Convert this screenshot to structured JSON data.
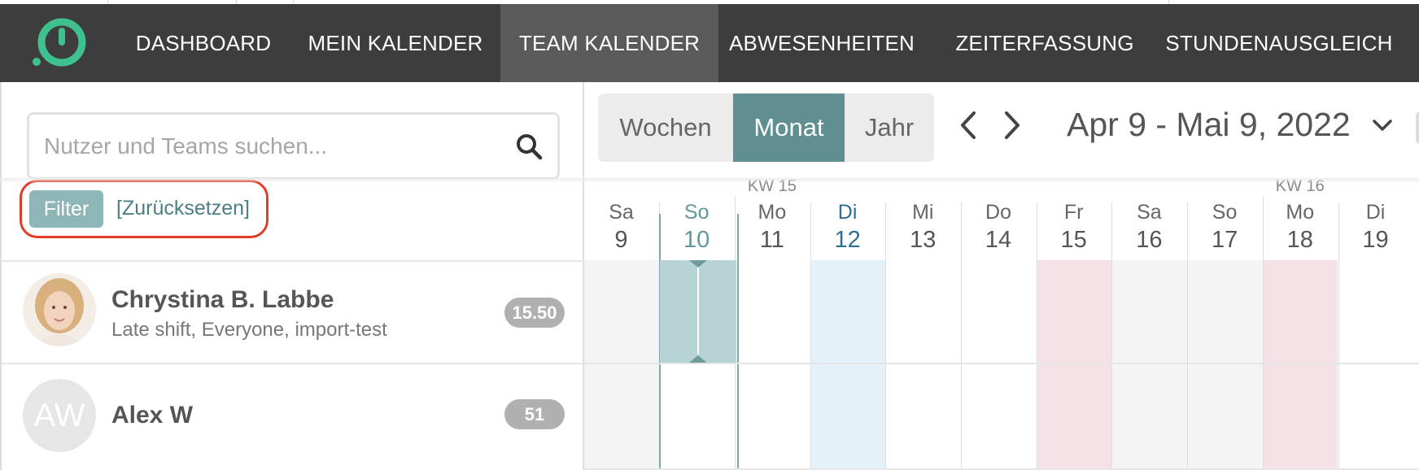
{
  "nav": {
    "logo_icon": "app-logo-icon",
    "items": [
      {
        "label": "DASHBOARD",
        "active": false
      },
      {
        "label": "MEIN KALENDER",
        "active": false
      },
      {
        "label": "TEAM KALENDER",
        "active": true
      },
      {
        "label": "ABWESENHEITEN",
        "active": false
      },
      {
        "label": "ZEITERFASSUNG",
        "active": false
      },
      {
        "label": "STUNDENAUSGLEICH",
        "active": false
      }
    ]
  },
  "search": {
    "placeholder": "Nutzer und Teams suchen...",
    "value": "",
    "icon": "search-icon"
  },
  "filter": {
    "filter_label": "Filter",
    "reset_label": "[Zurücksetzen]"
  },
  "users": [
    {
      "name": "Chrystina B. Labbe",
      "teams": "Late shift, Everyone, import-test",
      "hours": "15.50",
      "avatar": "photo"
    },
    {
      "name": "Alex W",
      "teams": "",
      "hours": "51",
      "avatar_initials": "AW"
    }
  ],
  "calendar": {
    "views": [
      {
        "label": "Wochen",
        "active": false
      },
      {
        "label": "Monat",
        "active": true
      },
      {
        "label": "Jahr",
        "active": false
      }
    ],
    "prev_icon": "chevron-left-icon",
    "next_icon": "chevron-right-icon",
    "date_range": "Apr 9 - Mai 9, 2022",
    "date_range_icon": "chevron-down-icon",
    "week_labels": [
      "KW 15",
      "KW 16"
    ],
    "days": [
      {
        "abbr": "Sa",
        "num": "9",
        "kind": "weekend"
      },
      {
        "abbr": "So",
        "num": "10",
        "kind": "today"
      },
      {
        "abbr": "Mo",
        "num": "11",
        "kind": "normal",
        "week": "KW 15"
      },
      {
        "abbr": "Di",
        "num": "12",
        "kind": "selected"
      },
      {
        "abbr": "Mi",
        "num": "13",
        "kind": "normal"
      },
      {
        "abbr": "Do",
        "num": "14",
        "kind": "normal"
      },
      {
        "abbr": "Fr",
        "num": "15",
        "kind": "holiday"
      },
      {
        "abbr": "Sa",
        "num": "16",
        "kind": "weekend"
      },
      {
        "abbr": "So",
        "num": "17",
        "kind": "weekend"
      },
      {
        "abbr": "Mo",
        "num": "18",
        "kind": "holiday",
        "week": "KW 16"
      },
      {
        "abbr": "Di",
        "num": "19",
        "kind": "normal"
      }
    ]
  },
  "colors": {
    "nav_bg": "#3d3d3d",
    "accent_teal": "#5f8f90",
    "filter_bg": "#8fb6b6",
    "highlight_red": "#e03c28",
    "today_text": "#5f9a9a",
    "selected_text": "#2f6e95",
    "selected_col": "#e4f1f8",
    "holiday_col": "#f6e2e6",
    "weekend_col": "#f4f4f4",
    "shift_fill": "#b7d3d3"
  }
}
